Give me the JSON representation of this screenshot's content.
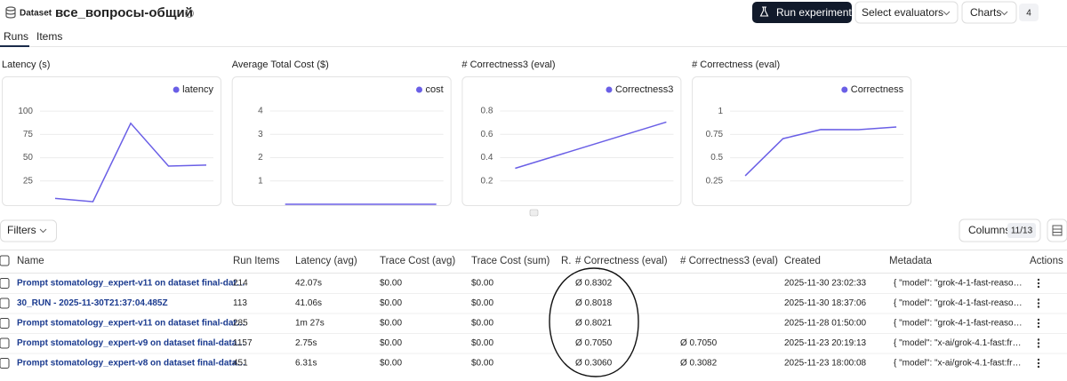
{
  "header": {
    "badge": "Dataset",
    "title": "все_вопросы-общий",
    "buttons": [
      "Run experiment",
      "Select evaluators",
      "Charts"
    ],
    "chart_count": 4
  },
  "tabs": [
    "Runs",
    "Items"
  ],
  "chart_data": [
    {
      "type": "line",
      "title": "Latency (s)",
      "series": [
        {
          "name": "latency",
          "color": "#6a5fe6",
          "values": [
            6.31,
            2.75,
            87,
            41.06,
            42.07
          ]
        }
      ],
      "ylim": [
        0,
        124
      ],
      "yticks": [
        25,
        50,
        75,
        100
      ],
      "grid": true,
      "legend": "top-right"
    },
    {
      "type": "line",
      "title": "Average Total Cost ($)",
      "series": [
        {
          "name": "cost",
          "color": "#6a5fe6",
          "values": [
            0,
            0,
            0,
            0,
            0
          ]
        }
      ],
      "ylim": [
        0,
        4.95
      ],
      "yticks": [
        1,
        2,
        3,
        4
      ],
      "grid": true,
      "legend": "top-right"
    },
    {
      "type": "line",
      "title": "# Correctness3 (eval)",
      "series": [
        {
          "name": "Correctness3",
          "color": "#6a5fe6",
          "values": [
            0.3082,
            0.705
          ]
        }
      ],
      "ylim": [
        0,
        0.99
      ],
      "yticks": [
        0.2,
        0.4,
        0.6,
        0.8
      ],
      "grid": true,
      "legend": "top-right"
    },
    {
      "type": "line",
      "title": "# Correctness (eval)",
      "series": [
        {
          "name": "Correctness",
          "color": "#6a5fe6",
          "values": [
            0.306,
            0.705,
            0.8021,
            0.8018,
            0.8302
          ]
        }
      ],
      "ylim": [
        0,
        1.24
      ],
      "yticks": [
        0.25,
        0.5,
        0.75,
        1
      ],
      "grid": true,
      "legend": "top-right"
    }
  ],
  "toolbar": {
    "filters": "Filters",
    "columns": "Columns",
    "columns_count": "11/13"
  },
  "table": {
    "headers": [
      "Name",
      "Run Items",
      "Latency (avg)",
      "Trace Cost (avg)",
      "Trace Cost (sum)",
      "R.",
      "# Correctness (eval)",
      "# Correctness3 (eval)",
      "Created",
      "Metadata",
      "Actions"
    ],
    "rows": [
      [
        "Prompt stomatology_expert-v11 on dataset final-dat…",
        214,
        "42.07s",
        "$0.00",
        "$0.00",
        null,
        "Ø 0.8302",
        null,
        "2025-11-30 23:02:33",
        "{ \"model\": \"grok-4-1-fast-reaso…",
        null
      ],
      [
        "30_RUN - 2025-11-30T21:37:04.485Z",
        113,
        "41.06s",
        "$0.00",
        "$0.00",
        null,
        "Ø 0.8018",
        null,
        "2025-11-30 18:37:06",
        "{ \"model\": \"grok-4-1-fast-reaso…",
        null
      ],
      [
        "Prompt stomatology_expert-v11 on dataset final-dat…",
        285,
        "1m 27s",
        "$0.00",
        "$0.00",
        null,
        "Ø 0.8021",
        null,
        "2025-11-28 01:50:00",
        "{ \"model\": \"grok-4-1-fast-reaso…",
        null
      ],
      [
        "Prompt stomatology_expert-v9 on dataset final-data…",
        1157,
        "2.75s",
        "$0.00",
        "$0.00",
        null,
        "Ø 0.7050",
        "Ø 0.7050",
        "2025-11-23 20:19:13",
        "{ \"model\": \"x-ai/grok-4.1-fast:fr…",
        null
      ],
      [
        "Prompt stomatology_expert-v8 on dataset final-data…",
        451,
        "6.31s",
        "$0.00",
        "$0.00",
        null,
        "Ø 0.3060",
        "Ø 0.3082",
        "2025-11-23 18:00:08",
        "{ \"model\": \"x-ai/grok-4.1-fast:fr…",
        null
      ]
    ]
  }
}
